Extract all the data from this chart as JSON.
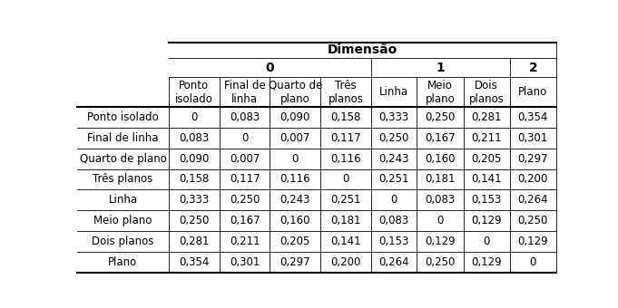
{
  "title": "Dimensão",
  "dim0_label": "0",
  "dim1_label": "1",
  "dim2_label": "2",
  "col_headers": [
    "Ponto\nisolado",
    "Final de\nlinha",
    "Quarto de\nplano",
    "Três\nplanos",
    "Linha",
    "Meio\nplano",
    "Dois\nplanos",
    "Plano"
  ],
  "row_headers": [
    "Ponto isolado",
    "Final de linha",
    "Quarto de plano",
    "Três planos",
    "Linha",
    "Meio plano",
    "Dois planos",
    "Plano"
  ],
  "data": [
    [
      "0",
      "0,083",
      "0,090",
      "0,158",
      "0,333",
      "0,250",
      "0,281",
      "0,354"
    ],
    [
      "0,083",
      "0",
      "0,007",
      "0,117",
      "0,250",
      "0,167",
      "0,211",
      "0,301"
    ],
    [
      "0,090",
      "0,007",
      "0",
      "0,116",
      "0,243",
      "0,160",
      "0,205",
      "0,297"
    ],
    [
      "0,158",
      "0,117",
      "0,116",
      "0",
      "0,251",
      "0,181",
      "0,141",
      "0,200"
    ],
    [
      "0,333",
      "0,250",
      "0,243",
      "0,251",
      "0",
      "0,083",
      "0,153",
      "0,264"
    ],
    [
      "0,250",
      "0,167",
      "0,160",
      "0,181",
      "0,083",
      "0",
      "0,129",
      "0,250"
    ],
    [
      "0,281",
      "0,211",
      "0,205",
      "0,141",
      "0,153",
      "0,129",
      "0",
      "0,129"
    ],
    [
      "0,354",
      "0,301",
      "0,297",
      "0,200",
      "0,264",
      "0,250",
      "0,129",
      "0"
    ]
  ],
  "bg_color": "#ffffff",
  "lw_thick": 1.5,
  "lw_thin": 0.6,
  "title_fontsize": 10,
  "dim_fontsize": 10,
  "header_fontsize": 8.5,
  "cell_fontsize": 8.5,
  "row_header_fontsize": 8.5
}
